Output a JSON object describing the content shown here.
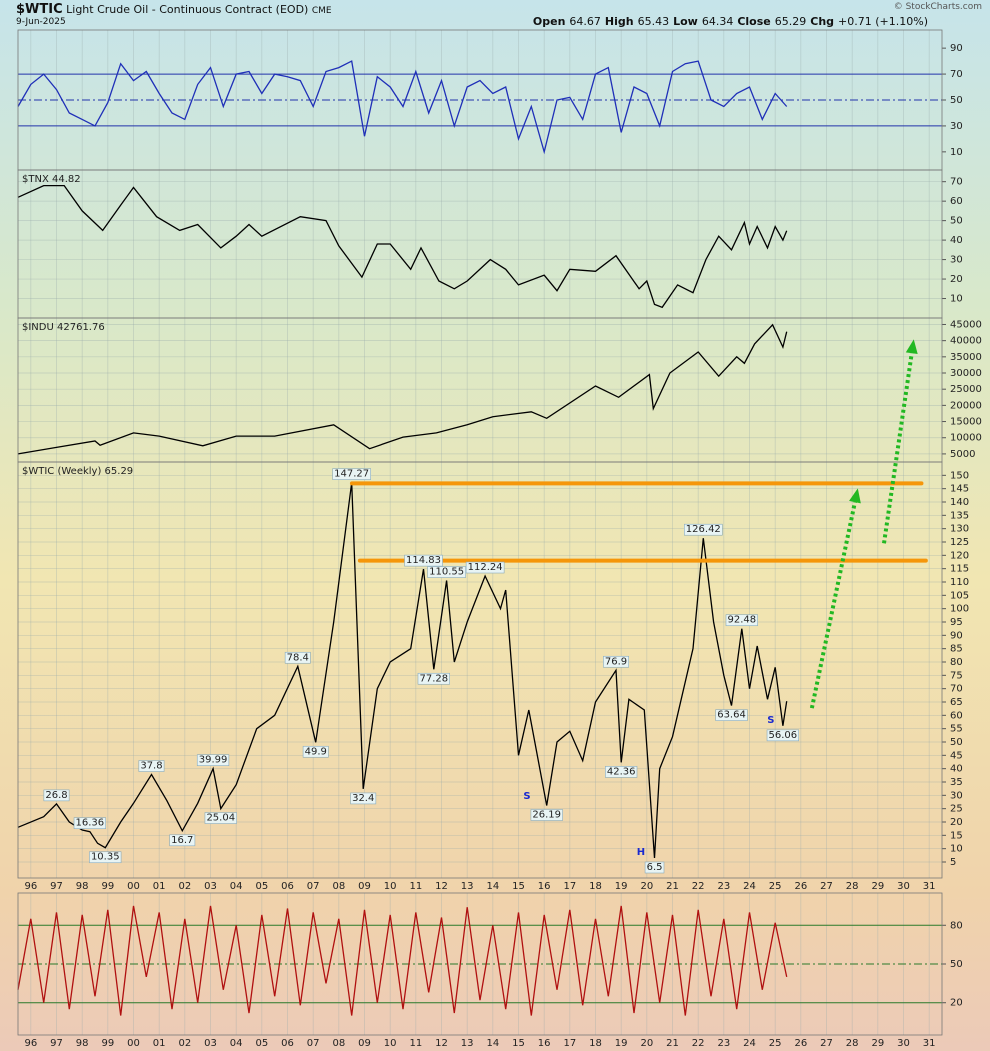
{
  "header": {
    "symbol": "$WTIC",
    "name": "Light Crude Oil - Continuous Contract (EOD)",
    "exchange": "CME",
    "date": "9-Jun-2025",
    "quote": [
      {
        "label": "Open",
        "value": "64.67"
      },
      {
        "label": "High",
        "value": "65.43"
      },
      {
        "label": "Low",
        "value": "64.34"
      },
      {
        "label": "Close",
        "value": "65.29"
      },
      {
        "label": "Chg",
        "value": "+0.71 (+1.10%)"
      }
    ],
    "credit": "© StockCharts.com"
  },
  "chart_data": [
    {
      "type": "line",
      "color": "#1f2fb8",
      "xlim": [
        1995.5,
        2031.5
      ],
      "ylim": [
        -4,
        104
      ],
      "yticks": [
        10,
        30,
        50,
        70,
        90
      ],
      "grid": false,
      "levels": [
        70,
        50,
        30
      ],
      "level_color": "#2233aa",
      "x": [
        1995.5,
        1996,
        1996.5,
        1997,
        1997.5,
        1998,
        1998.5,
        1999,
        1999.5,
        2000,
        2000.5,
        2001,
        2001.5,
        2002,
        2002.5,
        2003,
        2003.5,
        2004,
        2004.5,
        2005,
        2005.5,
        2006,
        2006.5,
        2007,
        2007.5,
        2008,
        2008.5,
        2009,
        2009.5,
        2010,
        2010.5,
        2011,
        2011.5,
        2012,
        2012.5,
        2013,
        2013.5,
        2014,
        2014.5,
        2015,
        2015.5,
        2016,
        2016.5,
        2017,
        2017.5,
        2018,
        2018.5,
        2019,
        2019.5,
        2020,
        2020.5,
        2021,
        2021.5,
        2022,
        2022.5,
        2023,
        2023.5,
        2024,
        2024.5,
        2025,
        2025.45
      ],
      "values": [
        45,
        62,
        70,
        58,
        40,
        35,
        30,
        48,
        78,
        65,
        72,
        55,
        40,
        35,
        62,
        75,
        45,
        70,
        72,
        55,
        70,
        68,
        65,
        45,
        72,
        75,
        80,
        22,
        68,
        60,
        45,
        72,
        40,
        65,
        30,
        60,
        65,
        55,
        60,
        20,
        45,
        10,
        50,
        52,
        35,
        70,
        75,
        25,
        60,
        55,
        30,
        72,
        78,
        80,
        50,
        45,
        55,
        60,
        35,
        55,
        45
      ]
    },
    {
      "type": "line",
      "label": "$TNX 44.82",
      "color": "#000000",
      "xlim": [
        1995.5,
        2031.5
      ],
      "ylim": [
        0,
        76
      ],
      "yticks": [
        10,
        20,
        30,
        40,
        50,
        60,
        70
      ],
      "grid": true,
      "x": [
        1995.5,
        1996.5,
        1997.3,
        1998.0,
        1998.8,
        1999.5,
        2000.0,
        2000.9,
        2001.8,
        2002.5,
        2003.4,
        2004.0,
        2004.5,
        2005.0,
        2006.5,
        2007.5,
        2008.0,
        2008.9,
        2009.5,
        2010.0,
        2010.8,
        2011.2,
        2011.9,
        2012.5,
        2013.0,
        2013.9,
        2014.5,
        2015.0,
        2016.0,
        2016.5,
        2017.0,
        2018.0,
        2018.8,
        2019.7,
        2020.0,
        2020.3,
        2020.6,
        2021.2,
        2021.8,
        2022.3,
        2022.8,
        2023.3,
        2023.8,
        2024.0,
        2024.3,
        2024.7,
        2025.0,
        2025.3,
        2025.45
      ],
      "values": [
        62,
        68,
        68,
        55,
        45,
        58,
        67,
        52,
        45,
        48,
        36,
        42,
        48,
        42,
        52,
        50,
        37,
        21,
        38,
        38,
        25,
        36,
        19,
        15,
        19,
        30,
        25,
        17,
        22,
        14,
        25,
        24,
        32,
        15,
        19,
        7,
        5.5,
        17,
        13,
        30,
        42,
        35,
        49,
        38,
        47,
        36,
        47,
        40,
        44.82
      ]
    },
    {
      "type": "line",
      "label": "$INDU 42761.76",
      "color": "#000000",
      "xlim": [
        1995.5,
        2031.5
      ],
      "ylim": [
        2500,
        47000
      ],
      "yticks": [
        5000,
        10000,
        15000,
        20000,
        25000,
        30000,
        35000,
        40000,
        45000
      ],
      "grid": true,
      "x": [
        1995.5,
        1997.0,
        1998.5,
        1998.7,
        2000.0,
        2001.0,
        2002.7,
        2004.0,
        2005.5,
        2007.8,
        2009.2,
        2010.5,
        2011.8,
        2013.0,
        2014.0,
        2015.5,
        2016.1,
        2018.0,
        2018.9,
        2020.1,
        2020.25,
        2020.9,
        2022.0,
        2022.8,
        2023.5,
        2023.8,
        2024.2,
        2024.9,
        2025.3,
        2025.45
      ],
      "values": [
        5000,
        7000,
        9000,
        7700,
        11500,
        10500,
        7500,
        10500,
        10500,
        14000,
        6600,
        10200,
        11500,
        14000,
        16500,
        18000,
        16000,
        26000,
        22500,
        29500,
        19000,
        30000,
        36500,
        29000,
        35000,
        33000,
        39000,
        44900,
        38000,
        42761.76
      ]
    },
    {
      "type": "line",
      "label": "$WTIC (Weekly) 65.29",
      "color": "#000000",
      "xlim": [
        1995.5,
        2031.5
      ],
      "ylim": [
        -1,
        155
      ],
      "yticks": [
        5,
        10,
        15,
        20,
        25,
        30,
        35,
        40,
        45,
        50,
        55,
        60,
        65,
        70,
        75,
        80,
        85,
        90,
        95,
        100,
        105,
        110,
        115,
        120,
        125,
        130,
        135,
        140,
        145,
        150
      ],
      "grid": true,
      "xticks": [
        {
          "value": 1996,
          "label": "96"
        },
        {
          "value": 1997,
          "label": "97"
        },
        {
          "value": 1998,
          "label": "98"
        },
        {
          "value": 1999,
          "label": "99"
        },
        {
          "value": 2000,
          "label": "00"
        },
        {
          "value": 2001,
          "label": "01"
        },
        {
          "value": 2002,
          "label": "02"
        },
        {
          "value": 2003,
          "label": "03"
        },
        {
          "value": 2004,
          "label": "04"
        },
        {
          "value": 2005,
          "label": "05"
        },
        {
          "value": 2006,
          "label": "06"
        },
        {
          "value": 2007,
          "label": "07"
        },
        {
          "value": 2008,
          "label": "08"
        },
        {
          "value": 2009,
          "label": "09"
        },
        {
          "value": 2010,
          "label": "10"
        },
        {
          "value": 2011,
          "label": "11"
        },
        {
          "value": 2012,
          "label": "12"
        },
        {
          "value": 2013,
          "label": "13"
        },
        {
          "value": 2014,
          "label": "14"
        },
        {
          "value": 2015,
          "label": "15"
        },
        {
          "value": 2016,
          "label": "16"
        },
        {
          "value": 2017,
          "label": "17"
        },
        {
          "value": 2018,
          "label": "18"
        },
        {
          "value": 2019,
          "label": "19"
        },
        {
          "value": 2020,
          "label": "20"
        },
        {
          "value": 2021,
          "label": "21"
        },
        {
          "value": 2022,
          "label": "22"
        },
        {
          "value": 2023,
          "label": "23"
        },
        {
          "value": 2024,
          "label": "24"
        },
        {
          "value": 2025,
          "label": "25"
        },
        {
          "value": 2026,
          "label": "26"
        },
        {
          "value": 2027,
          "label": "27"
        },
        {
          "value": 2028,
          "label": "28"
        },
        {
          "value": 2029,
          "label": "29"
        },
        {
          "value": 2030,
          "label": "30"
        },
        {
          "value": 2031,
          "label": "31"
        }
      ],
      "x": [
        1995.5,
        1996.5,
        1997.0,
        1997.5,
        1998.0,
        1998.3,
        1998.6,
        1998.9,
        1999.5,
        2000.0,
        2000.7,
        2001.3,
        2001.9,
        2002.5,
        2003.1,
        2003.4,
        2004.0,
        2004.8,
        2005.5,
        2006.4,
        2006.9,
        2007.1,
        2007.8,
        2008.5,
        2008.95,
        2009.5,
        2010.0,
        2010.8,
        2011.3,
        2011.7,
        2012.2,
        2012.5,
        2013.0,
        2013.7,
        2014.3,
        2014.5,
        2015.0,
        2015.4,
        2016.1,
        2016.5,
        2017.0,
        2017.5,
        2018.0,
        2018.8,
        2019.0,
        2019.3,
        2019.9,
        2020.3,
        2020.5,
        2021.0,
        2021.8,
        2022.2,
        2022.6,
        2023.0,
        2023.3,
        2023.7,
        2024.0,
        2024.3,
        2024.7,
        2025.0,
        2025.3,
        2025.45
      ],
      "values": [
        18,
        22,
        26.8,
        20,
        17,
        16.36,
        12,
        10.35,
        20,
        27,
        37.8,
        28,
        16.7,
        27,
        39.99,
        25.04,
        34,
        55,
        60,
        78.4,
        58,
        49.9,
        95,
        147.27,
        32.4,
        70,
        80,
        85,
        114.83,
        77.28,
        110.55,
        80,
        95,
        112.24,
        100,
        107,
        45,
        62,
        26.19,
        50,
        54,
        43,
        65,
        76.9,
        42.36,
        66,
        62,
        6.5,
        40,
        52,
        85,
        126.42,
        95,
        75,
        63.64,
        92.48,
        70,
        86,
        66,
        78,
        56.06,
        65.29
      ],
      "annotations": [
        {
          "x": 1997.0,
          "value": 26.8,
          "side": "above"
        },
        {
          "x": 1998.3,
          "value": 16.36,
          "side": "above"
        },
        {
          "x": 1998.9,
          "value": 10.35,
          "side": "below"
        },
        {
          "x": 2000.7,
          "value": 37.8,
          "side": "above"
        },
        {
          "x": 2001.9,
          "value": 16.7,
          "side": "below"
        },
        {
          "x": 2003.1,
          "value": 39.99,
          "side": "above"
        },
        {
          "x": 2003.4,
          "value": 25.04,
          "side": "below"
        },
        {
          "x": 2006.4,
          "value": 78.4,
          "side": "above"
        },
        {
          "x": 2007.1,
          "value": 49.9,
          "side": "below"
        },
        {
          "x": 2008.5,
          "value": 147.27,
          "side": "above"
        },
        {
          "x": 2008.95,
          "value": 32.4,
          "side": "below"
        },
        {
          "x": 2011.3,
          "value": 114.83,
          "side": "above"
        },
        {
          "x": 2012.2,
          "value": 110.55,
          "side": "above"
        },
        {
          "x": 2011.7,
          "value": 77.28,
          "side": "below"
        },
        {
          "x": 2013.7,
          "value": 112.24,
          "side": "above"
        },
        {
          "x": 2016.1,
          "value": 26.19,
          "side": "below"
        },
        {
          "x": 2018.8,
          "value": 76.9,
          "side": "above"
        },
        {
          "x": 2019.0,
          "value": 42.36,
          "side": "below"
        },
        {
          "x": 2020.3,
          "value": 6.5,
          "side": "below"
        },
        {
          "x": 2022.2,
          "value": 126.42,
          "side": "above"
        },
        {
          "x": 2023.7,
          "value": 92.48,
          "side": "above"
        },
        {
          "x": 2023.3,
          "value": 63.64,
          "side": "below"
        },
        {
          "x": 2025.3,
          "value": 56.06,
          "side": "below"
        }
      ],
      "pattern_labels": [
        {
          "text": "S",
          "x": 2015.33,
          "value": 29.7
        },
        {
          "text": "H",
          "x": 2019.77,
          "value": 8.7
        },
        {
          "text": "S",
          "x": 2024.83,
          "value": 58.2
        }
      ],
      "resistance": [
        {
          "value": 147,
          "x": [
            2008.51,
            2030.7
          ]
        },
        {
          "value": 118,
          "x": [
            2008.82,
            2030.87
          ]
        }
      ],
      "resistance_color": "#f5960a",
      "arrows": [
        {
          "from": [
            2026.43,
            62.7
          ],
          "to": [
            2028.22,
            145.1
          ]
        },
        {
          "from": [
            2029.24,
            124.5
          ],
          "to": [
            2030.4,
            201
          ]
        }
      ],
      "arrow_color": "#22b822"
    },
    {
      "type": "line",
      "color": "#b01010",
      "xlim": [
        1995.5,
        2031.5
      ],
      "ylim": [
        -5,
        105
      ],
      "yticks": [
        20,
        50,
        80
      ],
      "grid": false,
      "levels": [
        80,
        50,
        20
      ],
      "level_color": "#2a7a2a",
      "xticks": [
        {
          "value": 1996,
          "label": "96"
        },
        {
          "value": 1997,
          "label": "97"
        },
        {
          "value": 1998,
          "label": "98"
        },
        {
          "value": 1999,
          "label": "99"
        },
        {
          "value": 2000,
          "label": "00"
        },
        {
          "value": 2001,
          "label": "01"
        },
        {
          "value": 2002,
          "label": "02"
        },
        {
          "value": 2003,
          "label": "03"
        },
        {
          "value": 2004,
          "label": "04"
        },
        {
          "value": 2005,
          "label": "05"
        },
        {
          "value": 2006,
          "label": "06"
        },
        {
          "value": 2007,
          "label": "07"
        },
        {
          "value": 2008,
          "label": "08"
        },
        {
          "value": 2009,
          "label": "09"
        },
        {
          "value": 2010,
          "label": "10"
        },
        {
          "value": 2011,
          "label": "11"
        },
        {
          "value": 2012,
          "label": "12"
        },
        {
          "value": 2013,
          "label": "13"
        },
        {
          "value": 2014,
          "label": "14"
        },
        {
          "value": 2015,
          "label": "15"
        },
        {
          "value": 2016,
          "label": "16"
        },
        {
          "value": 2017,
          "label": "17"
        },
        {
          "value": 2018,
          "label": "18"
        },
        {
          "value": 2019,
          "label": "19"
        },
        {
          "value": 2020,
          "label": "20"
        },
        {
          "value": 2021,
          "label": "21"
        },
        {
          "value": 2022,
          "label": "22"
        },
        {
          "value": 2023,
          "label": "23"
        },
        {
          "value": 2024,
          "label": "24"
        },
        {
          "value": 2025,
          "label": "25"
        },
        {
          "value": 2026,
          "label": "26"
        },
        {
          "value": 2027,
          "label": "27"
        },
        {
          "value": 2028,
          "label": "28"
        },
        {
          "value": 2029,
          "label": "29"
        },
        {
          "value": 2030,
          "label": "30"
        },
        {
          "value": 2031,
          "label": "31"
        }
      ],
      "x": [
        1995.5,
        1996,
        1996.5,
        1997,
        1997.5,
        1998,
        1998.5,
        1999,
        1999.5,
        2000,
        2000.5,
        2001,
        2001.5,
        2002,
        2002.5,
        2003,
        2003.5,
        2004,
        2004.5,
        2005,
        2005.5,
        2006,
        2006.5,
        2007,
        2007.5,
        2008,
        2008.5,
        2009,
        2009.5,
        2010,
        2010.5,
        2011,
        2011.5,
        2012,
        2012.5,
        2013,
        2013.5,
        2014,
        2014.5,
        2015,
        2015.5,
        2016,
        2016.5,
        2017,
        2017.5,
        2018,
        2018.5,
        2019,
        2019.5,
        2020,
        2020.5,
        2021,
        2021.5,
        2022,
        2022.5,
        2023,
        2023.5,
        2024,
        2024.5,
        2025,
        2025.45
      ],
      "values": [
        30,
        85,
        20,
        90,
        15,
        88,
        25,
        92,
        10,
        95,
        40,
        90,
        15,
        85,
        20,
        95,
        30,
        80,
        12,
        88,
        25,
        93,
        18,
        90,
        35,
        85,
        10,
        92,
        20,
        88,
        15,
        90,
        28,
        86,
        12,
        94,
        22,
        80,
        15,
        90,
        10,
        88,
        30,
        92,
        18,
        85,
        25,
        95,
        12,
        90,
        20,
        88,
        10,
        92,
        25,
        85,
        15,
        90,
        30,
        82,
        40
      ]
    }
  ]
}
